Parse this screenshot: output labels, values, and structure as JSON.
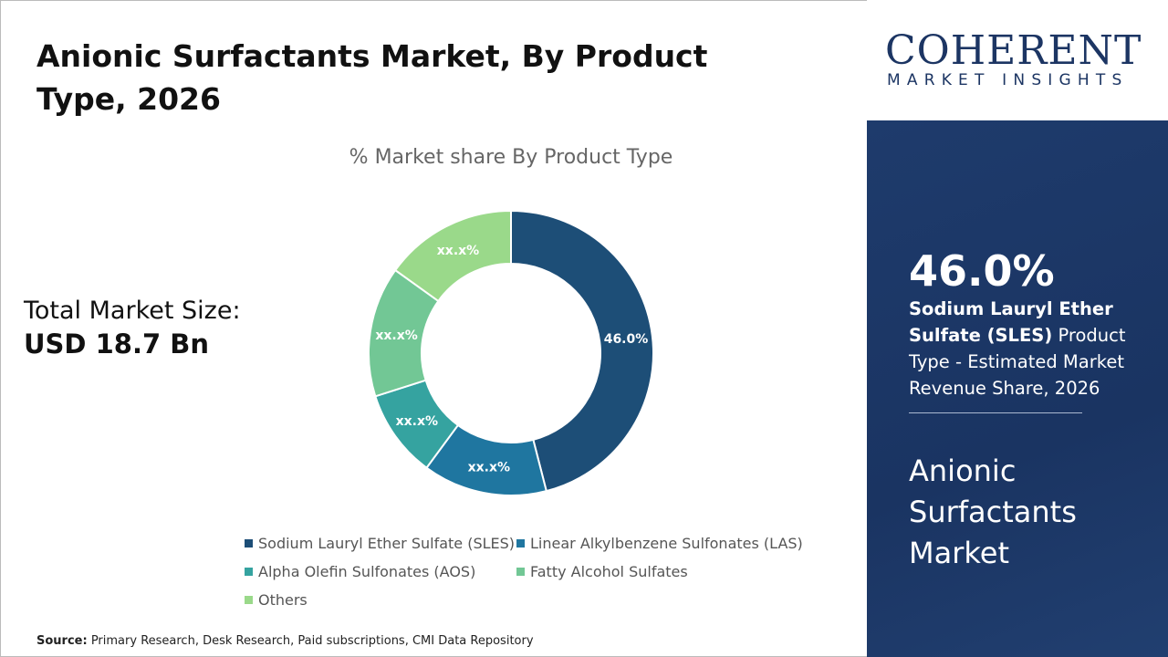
{
  "title": "Anionic Surfactants Market, By Product Type, 2026",
  "total": {
    "label": "Total Market Size:",
    "value": "USD 18.7 Bn"
  },
  "source": {
    "label": "Source:",
    "text": " Primary Research, Desk Research, Paid subscriptions, CMI Data Repository"
  },
  "logo": {
    "line1": "COHERENT",
    "line2": "MARKET INSIGHTS"
  },
  "highlight": {
    "value": "46.0%",
    "bold": "Sodium Lauryl Ether Sulfate (SLES)",
    "rest": " Product Type - Estimated Market Revenue Share, 2026",
    "market": "Anionic Surfactants Market"
  },
  "chart_data": {
    "type": "pie",
    "donut": true,
    "title": "% Market share By Product Type",
    "categories": [
      "Sodium Lauryl Ether Sulfate (SLES)",
      "Linear Alkylbenzene Sulfonates (LAS)",
      "Alpha Olefin Sulfonates (AOS)",
      "Fatty Alcohol Sulfates",
      "Others"
    ],
    "values": [
      46.0,
      14.1,
      10.0,
      14.8,
      15.1
    ],
    "labels": [
      "46.0%",
      "xx.x%",
      "xx.x%",
      "xx.x%",
      "xx.x%"
    ],
    "colors": [
      "#1d4e77",
      "#1f76a0",
      "#35a3a0",
      "#72c795",
      "#9ad98a"
    ],
    "legend": "bottom"
  }
}
